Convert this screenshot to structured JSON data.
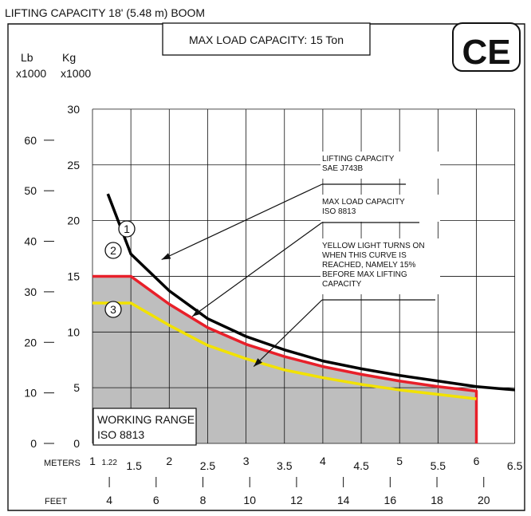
{
  "chart_data": {
    "type": "line",
    "header_title": "LIFTING CAPACITY 18' (5.48 m) BOOM",
    "max_load_label": "MAX LOAD CAPACITY: 15 Ton",
    "ce_mark": "CE",
    "y_left_label_1": "Lb",
    "y_left_label_2": "x1000",
    "y_kg_label_1": "Kg",
    "y_kg_label_2": "x1000",
    "x_meters_label": "METERS",
    "x_feet_label": "FEET",
    "xlim": [
      1,
      6.5
    ],
    "ylim_kg_x1000": [
      0,
      30
    ],
    "grid": true,
    "meter_ticks": [
      {
        "v": 1,
        "label": "1"
      },
      {
        "v": 1.22,
        "label": "1.22"
      },
      {
        "v": 1.5,
        "label": "1.5"
      },
      {
        "v": 2,
        "label": "2"
      },
      {
        "v": 2.5,
        "label": "2.5"
      },
      {
        "v": 3,
        "label": "3"
      },
      {
        "v": 3.5,
        "label": "3.5"
      },
      {
        "v": 4,
        "label": "4"
      },
      {
        "v": 4.5,
        "label": "4.5"
      },
      {
        "v": 5,
        "label": "5"
      },
      {
        "v": 5.5,
        "label": "5.5"
      },
      {
        "v": 6,
        "label": "6"
      },
      {
        "v": 6.5,
        "label": "6.5"
      }
    ],
    "feet_ticks": [
      {
        "ft": 4,
        "label": "4"
      },
      {
        "ft": 6,
        "label": "6"
      },
      {
        "ft": 8,
        "label": "8"
      },
      {
        "ft": 10,
        "label": "10"
      },
      {
        "ft": 12,
        "label": "12"
      },
      {
        "ft": 14,
        "label": "14"
      },
      {
        "ft": 16,
        "label": "16"
      },
      {
        "ft": 18,
        "label": "18"
      },
      {
        "ft": 20,
        "label": "20"
      }
    ],
    "kg_ticks": [
      {
        "v": 0,
        "label": "0"
      },
      {
        "v": 5,
        "label": "5"
      },
      {
        "v": 10,
        "label": "10"
      },
      {
        "v": 15,
        "label": "15"
      },
      {
        "v": 20,
        "label": "20"
      },
      {
        "v": 25,
        "label": "25"
      },
      {
        "v": 30,
        "label": "30"
      }
    ],
    "lb_ticks": [
      {
        "v": 0,
        "label": "0"
      },
      {
        "v": 10,
        "label": "10"
      },
      {
        "v": 20,
        "label": "20"
      },
      {
        "v": 30,
        "label": "30"
      },
      {
        "v": 40,
        "label": "40"
      },
      {
        "v": 50,
        "label": "50"
      },
      {
        "v": 60,
        "label": "60"
      }
    ],
    "series": [
      {
        "marker": "1",
        "color": "#000000",
        "points": [
          [
            1.2,
            22.4
          ],
          [
            1.5,
            17.0
          ],
          [
            2.0,
            13.7
          ],
          [
            2.5,
            11.2
          ],
          [
            3.0,
            9.6
          ],
          [
            3.5,
            8.4
          ],
          [
            4.0,
            7.4
          ],
          [
            4.5,
            6.7
          ],
          [
            5.0,
            6.1
          ],
          [
            5.5,
            5.6
          ],
          [
            6.0,
            5.1
          ],
          [
            6.5,
            4.8
          ]
        ]
      },
      {
        "marker": "2",
        "color": "#e8202a",
        "points": [
          [
            1.0,
            15.0
          ],
          [
            1.5,
            15.0
          ],
          [
            2.0,
            12.5
          ],
          [
            2.5,
            10.4
          ],
          [
            3.0,
            8.9
          ],
          [
            3.5,
            7.8
          ],
          [
            4.0,
            6.9
          ],
          [
            4.5,
            6.2
          ],
          [
            5.0,
            5.6
          ],
          [
            5.5,
            5.1
          ],
          [
            6.0,
            4.7
          ],
          [
            6.0,
            0
          ]
        ]
      },
      {
        "marker": "3",
        "color": "#f2e200",
        "points": [
          [
            1.0,
            12.6
          ],
          [
            1.5,
            12.6
          ],
          [
            2.0,
            10.6
          ],
          [
            2.5,
            8.8
          ],
          [
            3.0,
            7.6
          ],
          [
            3.5,
            6.6
          ],
          [
            4.0,
            5.9
          ],
          [
            4.5,
            5.3
          ],
          [
            5.0,
            4.8
          ],
          [
            5.5,
            4.4
          ],
          [
            6.0,
            4.0
          ]
        ]
      }
    ],
    "shaded_area": {
      "fill": "#bebebe",
      "label_1": "WORKING RANGE",
      "label_2": "ISO 8813"
    },
    "annotations": [
      {
        "lines": [
          "LIFTING CAPACITY",
          "SAE J743B"
        ],
        "points_to": [
          1.9,
          16.5
        ]
      },
      {
        "lines": [
          "MAX LOAD CAPACITY",
          "ISO 8813"
        ],
        "points_to": [
          2.3,
          11.4
        ]
      },
      {
        "lines": [
          "YELLOW LIGHT TURNS ON",
          "WHEN THIS CURVE IS",
          "REACHED, NAMELY 15%",
          "BEFORE MAX LIFTING",
          "CAPACITY"
        ],
        "points_to": [
          3.1,
          6.9
        ]
      }
    ]
  }
}
